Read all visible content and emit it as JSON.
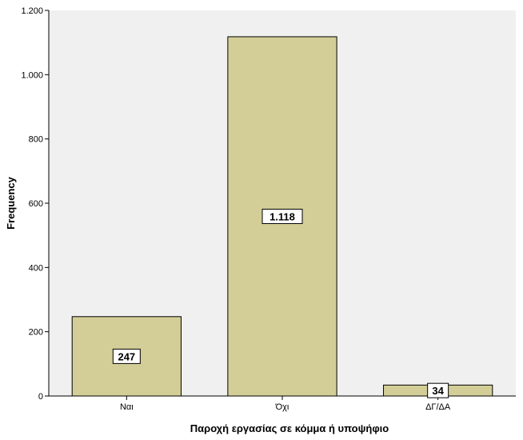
{
  "chart_data": {
    "type": "bar",
    "categories": [
      "Ναι",
      "Όχι",
      "ΔΓ/ΔΑ"
    ],
    "values": [
      247,
      1118,
      34
    ],
    "data_labels": [
      "247",
      "1.118",
      "34"
    ],
    "xlabel": "Παροχή εργασίας σε κόμμα ή υποψήφιο",
    "ylabel": "Frequency",
    "ylim": [
      0,
      1200
    ],
    "yticks": [
      0,
      200,
      400,
      600,
      800,
      1000,
      1200
    ],
    "ytick_labels": [
      "0",
      "200",
      "400",
      "600",
      "800",
      "1.000",
      "1.200"
    ],
    "grid": false,
    "legend": "none",
    "colors": {
      "plot_background": "#f0f0f0",
      "bar_fill": "#d3ce97",
      "bar_stroke": "#000000"
    }
  }
}
